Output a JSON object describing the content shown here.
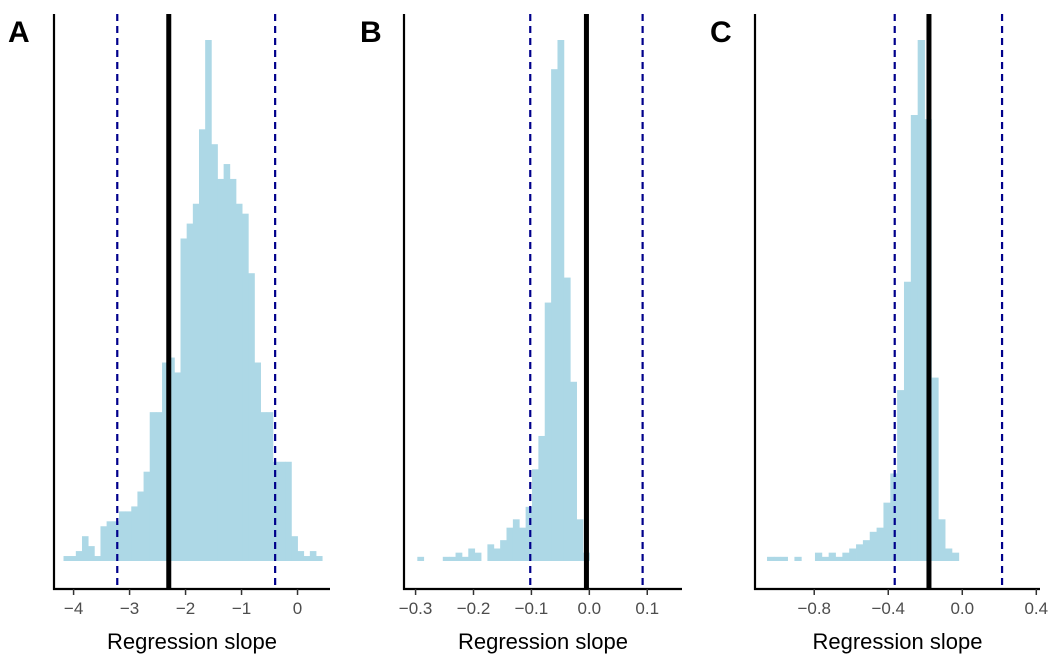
{
  "chart_data": [
    {
      "type": "histogram",
      "panel_label": "A",
      "xlabel": "Regression slope",
      "ylabel": "",
      "xlim": [
        -4.35,
        0.58
      ],
      "xticks": [
        -4,
        -3,
        -2,
        -1,
        0
      ],
      "xtick_labels": [
        "−4",
        "−3",
        "−2",
        "−1",
        "0"
      ],
      "y_axis_ticks": "none",
      "bin_width": 0.11,
      "bin_start": -4.18,
      "counts": [
        1,
        1,
        2,
        5,
        3,
        1,
        7,
        8,
        8,
        10,
        10,
        11,
        14,
        18,
        30,
        30,
        40,
        41,
        38,
        65,
        68,
        72,
        87,
        105,
        84,
        77,
        80,
        77,
        72,
        70,
        58,
        40,
        30,
        30,
        20,
        20,
        20,
        5,
        2,
        1,
        2,
        1
      ],
      "mean_line": -2.3,
      "ci_lines": [
        -3.22,
        -0.4
      ],
      "colors": {
        "bars": "#add8e6",
        "mean_line": "#000000",
        "ci_lines": "#00008b"
      }
    },
    {
      "type": "histogram",
      "panel_label": "B",
      "xlabel": "Regression slope",
      "ylabel": "",
      "xlim": [
        -0.32,
        0.16
      ],
      "xticks": [
        -0.3,
        -0.2,
        -0.1,
        0.0,
        0.1
      ],
      "xtick_labels": [
        "−0.3",
        "−0.2",
        "−0.1",
        "0.0",
        "0.1"
      ],
      "y_axis_ticks": "none",
      "bin_width": 0.011,
      "bin_start": -0.297,
      "counts": [
        1,
        0,
        0,
        0,
        1,
        1,
        2,
        1,
        3,
        2,
        0,
        4,
        3,
        5,
        8,
        10,
        8,
        13,
        22,
        30,
        62,
        118,
        125,
        68,
        43,
        10,
        2
      ],
      "mean_line": -0.005,
      "ci_lines": [
        -0.102,
        0.092
      ],
      "colors": {
        "bars": "#add8e6",
        "mean_line": "#000000",
        "ci_lines": "#00008b"
      }
    },
    {
      "type": "histogram",
      "panel_label": "C",
      "xlabel": "Regression slope",
      "ylabel": "",
      "xlim": [
        -1.12,
        0.42
      ],
      "xticks": [
        -0.8,
        -0.4,
        0.0,
        0.4
      ],
      "xtick_labels": [
        "−0.8",
        "−0.4",
        "0.0",
        "0.4"
      ],
      "y_axis_ticks": "none",
      "bin_width": 0.037,
      "bin_start": -1.055,
      "counts": [
        1,
        1,
        1,
        0,
        1,
        0,
        0,
        2,
        1,
        2,
        1,
        2,
        3,
        4,
        5,
        7,
        8,
        14,
        21,
        41,
        67,
        107,
        125,
        106,
        44,
        10,
        3,
        2
      ],
      "mean_line": -0.18,
      "ci_lines": [
        -0.365,
        0.215
      ],
      "colors": {
        "bars": "#add8e6",
        "mean_line": "#000000",
        "ci_lines": "#00008b"
      }
    }
  ]
}
